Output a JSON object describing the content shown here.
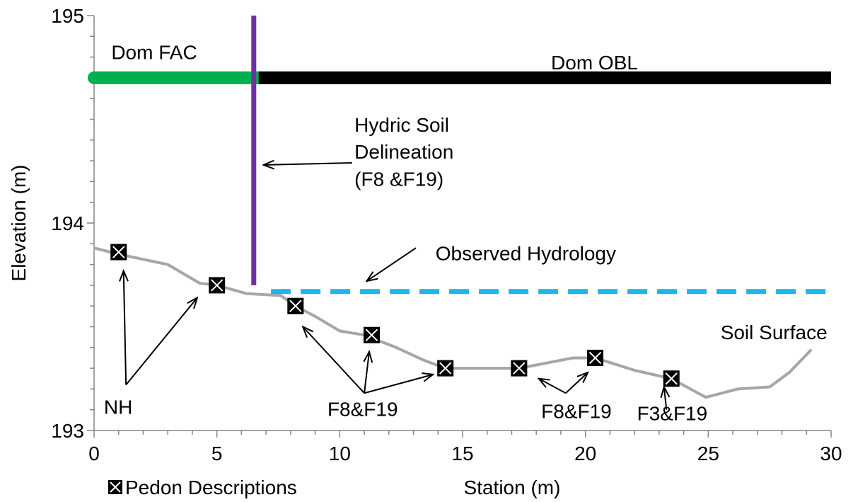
{
  "chart_data": {
    "type": "line",
    "xlabel": "Station (m)",
    "ylabel": "Elevation (m)",
    "xlim": [
      0,
      30
    ],
    "ylim": [
      193,
      195
    ],
    "x_ticks": [
      "0",
      "5",
      "10",
      "15",
      "20",
      "25",
      "30"
    ],
    "y_ticks": [
      "193",
      "194",
      "195"
    ],
    "grid": false,
    "legend": {
      "position": "bottom-left",
      "label": "Pedon Descriptions"
    },
    "series": [
      {
        "name": "Soil Surface",
        "color": "#a6a6a6",
        "style": "solid",
        "x": [
          0,
          1.0,
          3.0,
          4.3,
          5.0,
          6.2,
          7.6,
          8.2,
          9.0,
          10.0,
          11.0,
          12.3,
          13.4,
          14.3,
          15.0,
          17.3,
          19.5,
          20.4,
          22.0,
          23.5,
          24.9,
          26.2,
          27.5,
          28.3,
          29.2
        ],
        "y": [
          193.88,
          193.85,
          193.8,
          193.71,
          193.7,
          193.66,
          193.65,
          193.6,
          193.55,
          193.48,
          193.46,
          193.4,
          193.34,
          193.3,
          193.3,
          193.3,
          193.35,
          193.35,
          193.29,
          193.25,
          193.16,
          193.2,
          193.21,
          193.28,
          193.39
        ]
      },
      {
        "name": "Observed Hydrology",
        "color": "#1fb3e8",
        "style": "dashed",
        "x": [
          7.2,
          30
        ],
        "y": [
          193.67,
          193.67
        ]
      },
      {
        "name": "Dom FAC",
        "color": "#00b050",
        "style": "solid",
        "x": [
          0,
          6.7
        ],
        "y": [
          194.7,
          194.7
        ]
      },
      {
        "name": "Dom OBL",
        "color": "#000000",
        "style": "solid",
        "x": [
          6.7,
          30
        ],
        "y": [
          194.7,
          194.7
        ]
      },
      {
        "name": "Hydric Soil Delineation",
        "color": "#7030a0",
        "style": "solid",
        "x": [
          6.5,
          6.5
        ],
        "y": [
          193.7,
          195
        ]
      }
    ],
    "pedons": [
      {
        "x": 1.0,
        "y": 193.86
      },
      {
        "x": 5.0,
        "y": 193.7
      },
      {
        "x": 8.2,
        "y": 193.6
      },
      {
        "x": 11.3,
        "y": 193.46
      },
      {
        "x": 14.3,
        "y": 193.3
      },
      {
        "x": 17.3,
        "y": 193.3
      },
      {
        "x": 20.4,
        "y": 193.35
      },
      {
        "x": 23.5,
        "y": 193.25
      }
    ],
    "annotations": [
      {
        "text": "Dom FAC",
        "x": 0.7,
        "y": 194.79
      },
      {
        "text": "Dom OBL",
        "x": 18.6,
        "y": 194.74
      },
      {
        "text": "Hydric Soil",
        "x": 10.6,
        "y": 194.44
      },
      {
        "text": "Delineation",
        "x": 10.6,
        "y": 194.31
      },
      {
        "text": "(F8 &F19)",
        "x": 10.6,
        "y": 194.18
      },
      {
        "text": "Observed Hydrology",
        "x": 13.9,
        "y": 193.82
      },
      {
        "text": "Soil Surface",
        "x": 25.5,
        "y": 193.44
      },
      {
        "text": "NH",
        "x": 0.4,
        "y": 193.08
      },
      {
        "text": "F8&F19",
        "x": 9.5,
        "y": 193.07
      },
      {
        "text": "F8&F19",
        "x": 18.2,
        "y": 193.06
      },
      {
        "text": "F3&F19",
        "x": 22.1,
        "y": 193.05
      }
    ],
    "arrows": [
      {
        "from": [
          1.3,
          193.22
        ],
        "to": [
          1.2,
          193.77
        ]
      },
      {
        "from": [
          1.3,
          193.22
        ],
        "to": [
          4.2,
          193.64
        ]
      },
      {
        "from": [
          10.5,
          194.29
        ],
        "to": [
          6.9,
          194.28
        ]
      },
      {
        "from": [
          13.1,
          193.88
        ],
        "to": [
          11.1,
          193.72
        ]
      },
      {
        "from": [
          11.0,
          193.18
        ],
        "to": [
          8.5,
          193.5
        ]
      },
      {
        "from": [
          11.0,
          193.18
        ],
        "to": [
          11.2,
          193.38
        ]
      },
      {
        "from": [
          11.0,
          193.18
        ],
        "to": [
          13.8,
          193.27
        ]
      },
      {
        "from": [
          19.2,
          193.18
        ],
        "to": [
          18.1,
          193.25
        ]
      },
      {
        "from": [
          19.2,
          193.18
        ],
        "to": [
          20.1,
          193.28
        ]
      },
      {
        "from": [
          23.3,
          193.1
        ],
        "to": [
          23.2,
          193.21
        ]
      }
    ]
  }
}
